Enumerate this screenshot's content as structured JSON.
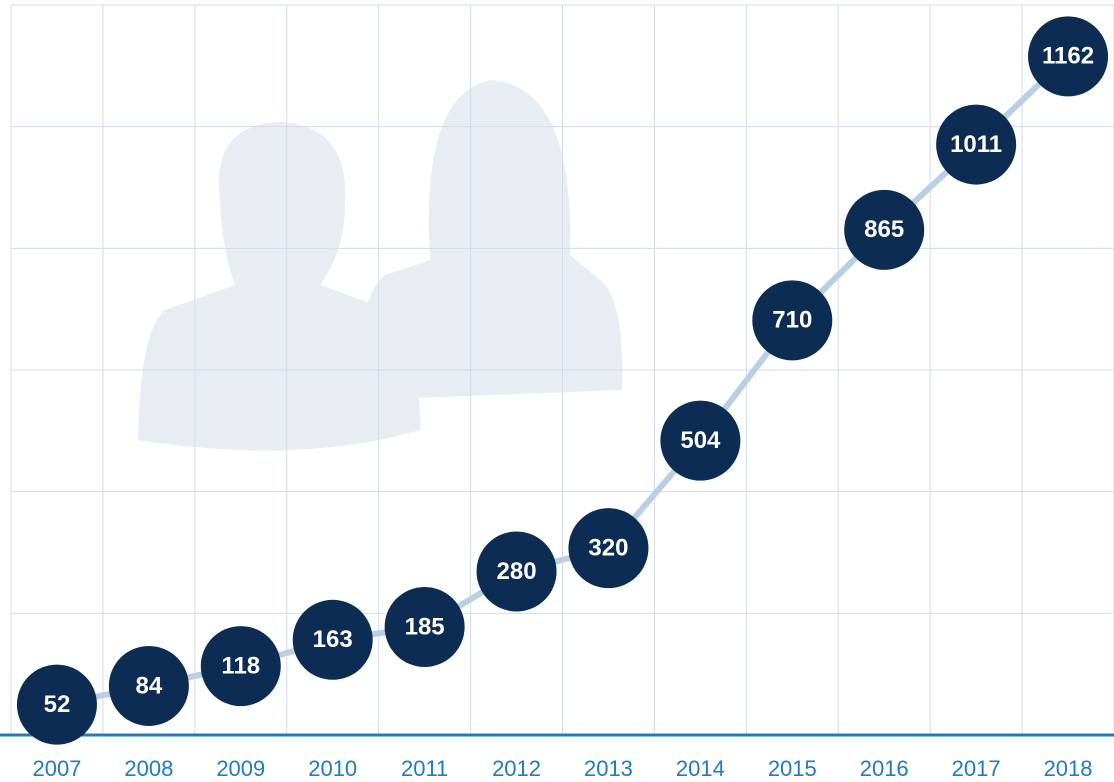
{
  "chart_data": {
    "type": "line",
    "categories": [
      "2007",
      "2008",
      "2009",
      "2010",
      "2011",
      "2012",
      "2013",
      "2014",
      "2015",
      "2016",
      "2017",
      "2018"
    ],
    "values": [
      52,
      84,
      118,
      163,
      185,
      280,
      320,
      504,
      710,
      865,
      1011,
      1162
    ],
    "color": "#b8cfe4",
    "marker_color": "#0d2c54",
    "axis_color": "#1f7bc4",
    "ylim": [
      0,
      1250
    ],
    "grid": true
  }
}
